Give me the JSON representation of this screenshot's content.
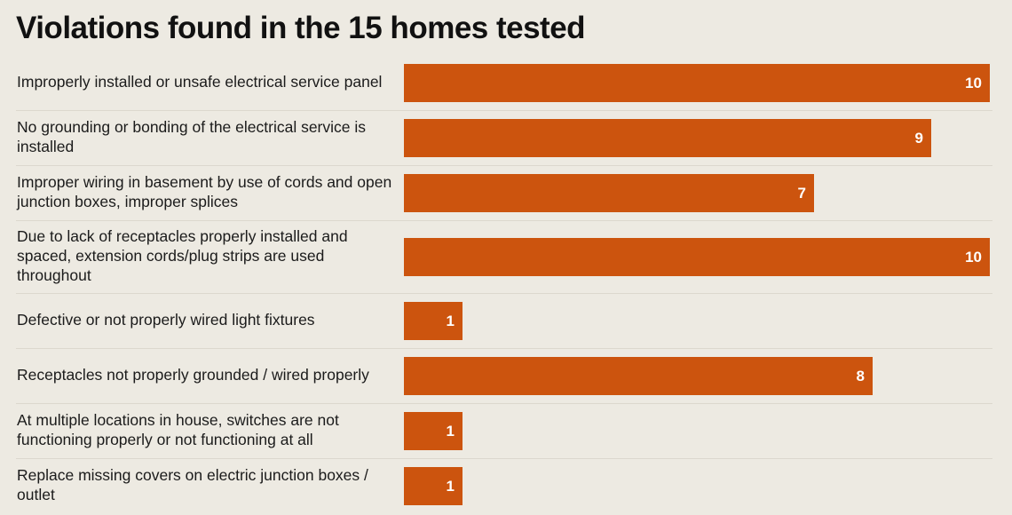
{
  "chart_data": {
    "type": "bar",
    "orientation": "horizontal",
    "title": "Violations found in the 15 homes tested",
    "xlabel": "",
    "ylabel": "",
    "xlim": [
      0,
      10
    ],
    "grid": false,
    "legend": "none",
    "bar_color": "#cc540e",
    "categories": [
      "Improperly installed or unsafe electrical service panel",
      "No grounding or bonding of the electrical service is installed",
      "Improper wiring in basement by use of cords and open junction boxes, improper splices",
      "Due to lack of receptacles properly installed and spaced, extension cords/plug strips are used throughout",
      "Defective or not properly wired light fixtures",
      "Receptacles not properly grounded / wired properly",
      "At multiple locations in house, switches are not functioning properly or not functioning at all",
      "Replace missing covers on electric junction boxes / outlet"
    ],
    "values": [
      10,
      9,
      7,
      10,
      1,
      8,
      1,
      1
    ]
  }
}
